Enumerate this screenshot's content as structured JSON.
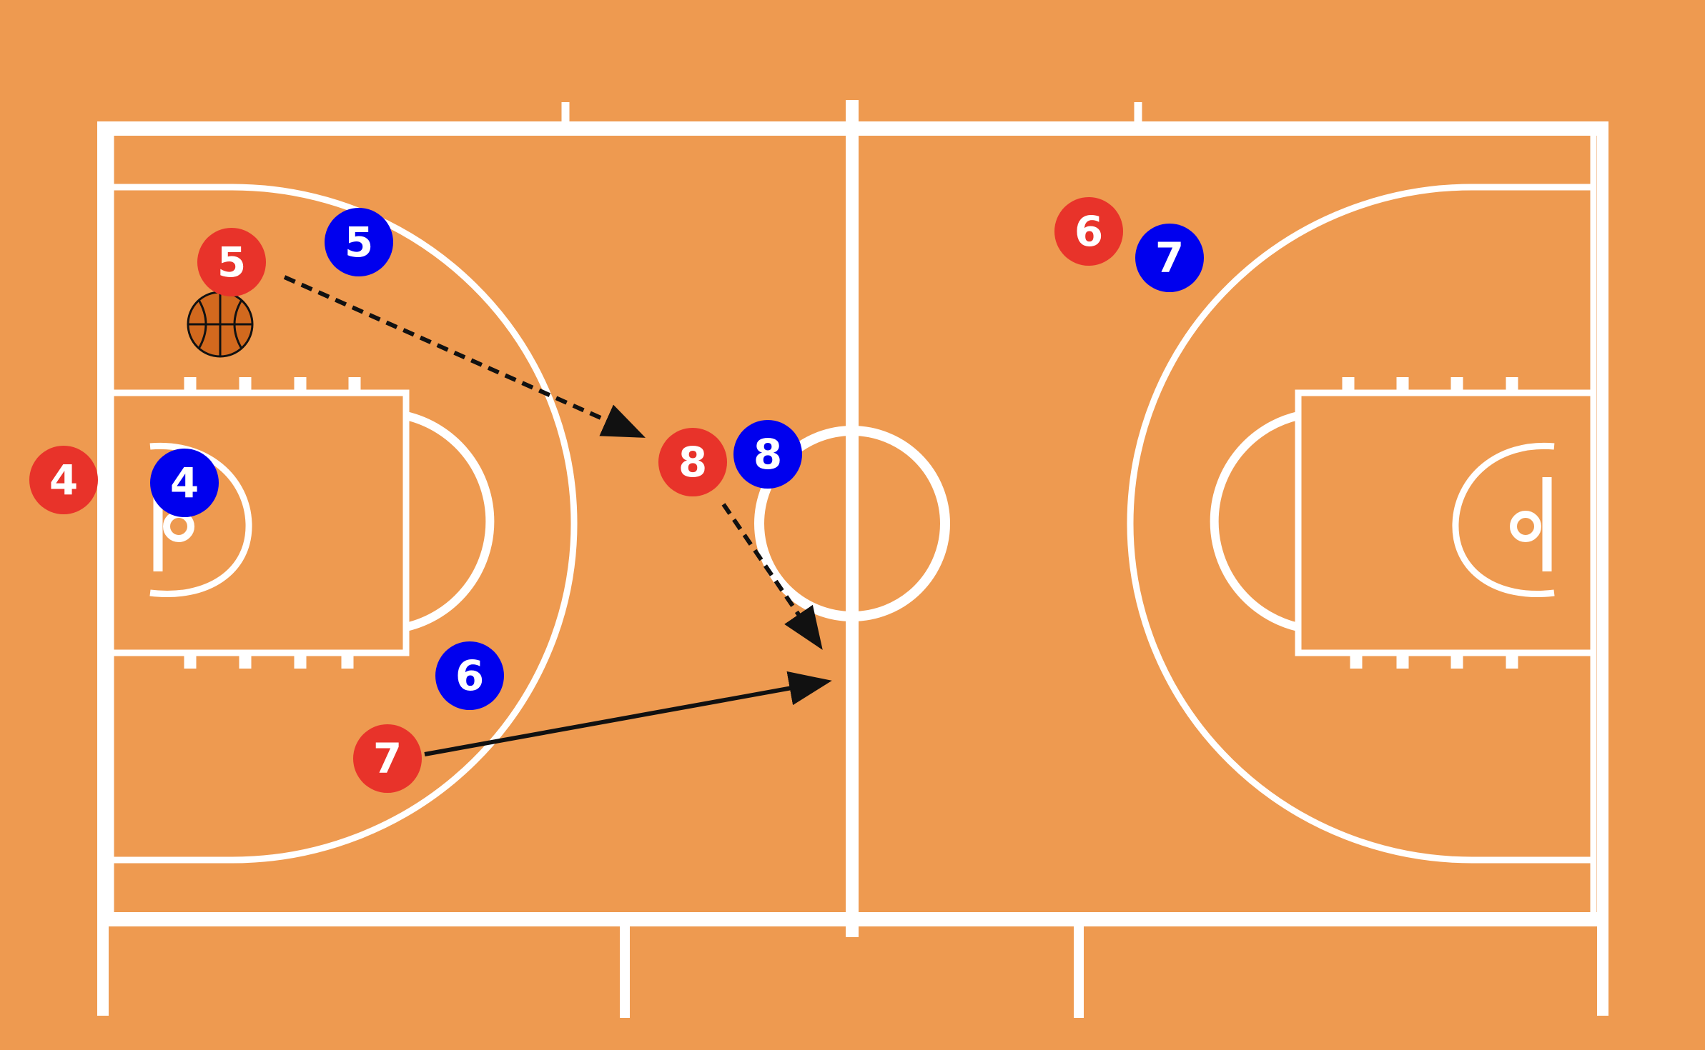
{
  "colors": {
    "court": "#EE9A50",
    "lines": "#FFFFFF",
    "team_red": "#E8332A",
    "team_blue": "#0000EE",
    "arrow": "#111111",
    "ball": "#D2691E"
  },
  "players": {
    "red": [
      {
        "label": "4"
      },
      {
        "label": "5"
      },
      {
        "label": "6"
      },
      {
        "label": "7"
      },
      {
        "label": "8"
      }
    ],
    "blue": [
      {
        "label": "4"
      },
      {
        "label": "5"
      },
      {
        "label": "6"
      },
      {
        "label": "7"
      },
      {
        "label": "8"
      }
    ]
  },
  "movements": [
    {
      "kind": "pass",
      "style": "dashed"
    },
    {
      "kind": "pass",
      "style": "dashed"
    },
    {
      "kind": "cut",
      "style": "solid"
    }
  ],
  "icons": {
    "ball": "basketball-icon"
  }
}
